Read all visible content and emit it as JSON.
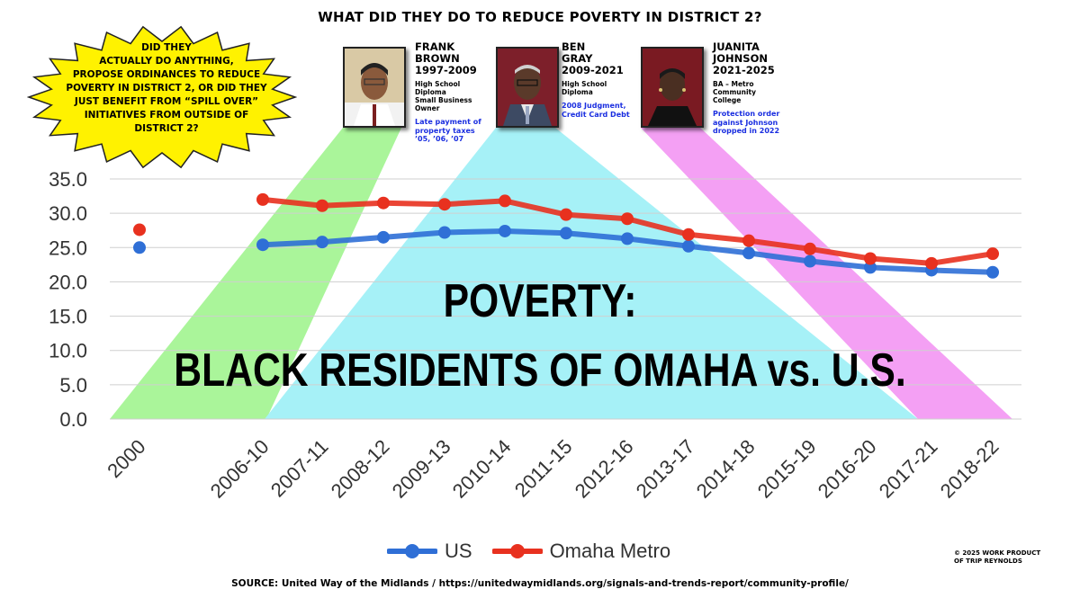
{
  "header": {
    "title": "WHAT DID THEY DO TO REDUCE POVERTY IN DISTRICT 2?"
  },
  "callout": {
    "lines": [
      "DID THEY",
      "ACTUALLY DO ANYTHING,",
      "PROPOSE ORDINANCES TO REDUCE",
      "POVERTY IN DISTRICT 2, OR DID THEY",
      "JUST BENEFIT FROM “SPILL OVER”",
      "INITIATIVES FROM OUTSIDE OF",
      "DISTRICT 2?"
    ],
    "color": "#fff200"
  },
  "officials": [
    {
      "name1": "FRANK",
      "name2": "BROWN",
      "term": "1997-2009",
      "edu": [
        "High School",
        "Diploma",
        "Small Business",
        "Owner"
      ],
      "note": [
        "Late payment of",
        "property taxes",
        "’05, ’06, ’07"
      ],
      "band_color": "#aaf59a"
    },
    {
      "name1": "BEN",
      "name2": "GRAY",
      "term": "2009-2021",
      "edu": [
        "High School",
        "Diploma"
      ],
      "note": [
        "2008 Judgment,",
        "Credit Card Debt"
      ],
      "band_color": "#a6f1f7"
    },
    {
      "name1": "JUANITA",
      "name2": "JOHNSON",
      "term": "2021-2025",
      "edu": [
        "BA – Metro",
        "Community",
        "College"
      ],
      "note": [
        "Protection order",
        "against Johnson",
        "dropped in 2022"
      ],
      "band_color": "#f4a0f4"
    }
  ],
  "overlay": {
    "line1": "POVERTY:",
    "line2": "BLACK RESIDENTS OF OMAHA vs. U.S."
  },
  "chart_data": {
    "type": "line",
    "categories": [
      "2000",
      "2006-10",
      "2007-11",
      "2008-12",
      "2009-13",
      "2010-14",
      "2011-15",
      "2012-16",
      "2013-17",
      "2014-18",
      "2015-19",
      "2016-20",
      "2017-21",
      "2018-22"
    ],
    "series": [
      {
        "name": "US",
        "color": "#2f6fd6",
        "values": [
          25.0,
          25.4,
          25.8,
          26.5,
          27.2,
          27.4,
          27.1,
          26.3,
          25.2,
          24.2,
          23.0,
          22.1,
          21.7,
          21.4
        ]
      },
      {
        "name": "Omaha Metro",
        "color": "#e8311f",
        "values": [
          27.6,
          32.0,
          31.1,
          31.5,
          31.3,
          31.8,
          29.8,
          29.2,
          26.9,
          26.0,
          24.8,
          23.4,
          22.7,
          24.1
        ]
      }
    ],
    "y_ticks": [
      "0.0",
      "5.0",
      "10.0",
      "15.0",
      "20.0",
      "25.0",
      "30.0",
      "35.0"
    ],
    "ylim": [
      0,
      35
    ],
    "grid": true,
    "legend": "bottom",
    "xlabel": "",
    "ylabel": ""
  },
  "legend": {
    "us": "US",
    "omaha": "Omaha Metro"
  },
  "footer": {
    "source": "SOURCE: United Way of the Midlands / https://unitedwaymidlands.org/signals-and-trends-report/community-profile/",
    "credit1": "© 2025 WORK PRODUCT",
    "credit2": "OF TRIP REYNOLDS"
  }
}
